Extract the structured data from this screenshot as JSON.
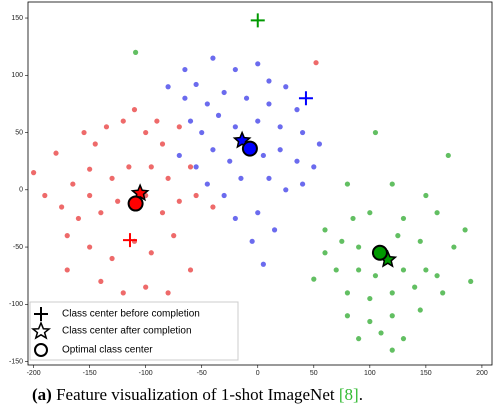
{
  "chart_data": {
    "type": "scatter",
    "xlim": [
      -205,
      209
    ],
    "ylim": [
      -153,
      164
    ],
    "xticks": [
      -200,
      -150,
      -100,
      -50,
      0,
      50,
      100,
      150,
      200
    ],
    "yticks": [
      -150,
      -100,
      -50,
      0,
      50,
      100,
      150
    ],
    "series": [
      {
        "color": "#ee6a6a",
        "x": [
          -180,
          -155,
          -150,
          -145,
          -135,
          -120,
          -110,
          -100,
          -90,
          -85,
          -70,
          -165,
          -150,
          -130,
          -115,
          -95,
          -80,
          -60,
          -175,
          -160,
          -140,
          -125,
          -100,
          -85,
          -70,
          -55,
          -190,
          -170,
          -150,
          -130,
          -110,
          -95,
          -75,
          -60,
          -140,
          -120,
          -100,
          -80,
          -170,
          -40,
          52,
          -200
        ],
        "y": [
          32,
          50,
          18,
          40,
          55,
          60,
          70,
          50,
          60,
          40,
          55,
          5,
          -5,
          10,
          20,
          20,
          10,
          20,
          -15,
          -25,
          -20,
          -10,
          -5,
          -20,
          -10,
          -5,
          -5,
          -40,
          -50,
          -60,
          -45,
          -55,
          -40,
          -70,
          -80,
          -90,
          -85,
          -90,
          -70,
          -15,
          111,
          15
        ]
      },
      {
        "color": "#6b6bee",
        "x": [
          -65,
          -55,
          -40,
          -20,
          0,
          10,
          -45,
          -30,
          -10,
          10,
          25,
          35,
          -60,
          -50,
          -35,
          -20,
          0,
          20,
          40,
          55,
          -70,
          -55,
          -40,
          -25,
          5,
          20,
          35,
          50,
          -45,
          -30,
          -15,
          10,
          25,
          40,
          -20,
          0,
          15,
          -5,
          5,
          -80,
          -65
        ],
        "y": [
          105,
          92,
          115,
          105,
          110,
          95,
          75,
          85,
          80,
          75,
          90,
          70,
          60,
          50,
          65,
          55,
          60,
          55,
          50,
          40,
          30,
          20,
          35,
          25,
          30,
          35,
          25,
          20,
          5,
          -5,
          10,
          10,
          0,
          5,
          -25,
          -20,
          -35,
          -45,
          -65,
          90,
          80
        ]
      },
      {
        "color": "#62bf62",
        "x": [
          -109,
          105,
          170,
          80,
          120,
          150,
          60,
          85,
          100,
          130,
          160,
          75,
          90,
          125,
          145,
          175,
          70,
          90,
          105,
          130,
          150,
          50,
          80,
          100,
          120,
          140,
          165,
          185,
          80,
          100,
          120,
          145,
          90,
          110,
          130,
          120,
          160,
          60,
          190
        ],
        "y": [
          120,
          50,
          30,
          5,
          5,
          -5,
          -35,
          -25,
          -20,
          -25,
          -20,
          -45,
          -50,
          -40,
          -45,
          -50,
          -70,
          -70,
          -75,
          -70,
          -70,
          -78,
          -90,
          -95,
          -90,
          -85,
          -90,
          -35,
          -110,
          -115,
          -110,
          -105,
          -130,
          -125,
          -130,
          -140,
          -75,
          -55,
          -80
        ]
      }
    ],
    "markers": [
      {
        "name": "Class center before completion",
        "marker": "plus",
        "colors": [
          "#ff0000",
          "#0000ff",
          "#009900"
        ],
        "x": [
          -114,
          43,
          0
        ],
        "y": [
          -44,
          80,
          148
        ]
      },
      {
        "name": "Class center after completion",
        "marker": "star",
        "colors": [
          "#ff0000",
          "#0000ff",
          "#009900"
        ],
        "x": [
          -105,
          -14,
          116
        ],
        "y": [
          -3,
          43,
          -61
        ]
      },
      {
        "name": "Optimal class center",
        "marker": "circle",
        "colors": [
          "#ff0000",
          "#0000ff",
          "#009900"
        ],
        "x": [
          -109,
          -7,
          109
        ],
        "y": [
          -12,
          36,
          -55
        ]
      }
    ]
  },
  "caption": {
    "label": "(a)",
    "text": "Feature visualization of 1-shot ImageNet",
    "ref": "[8]",
    "end": "."
  }
}
